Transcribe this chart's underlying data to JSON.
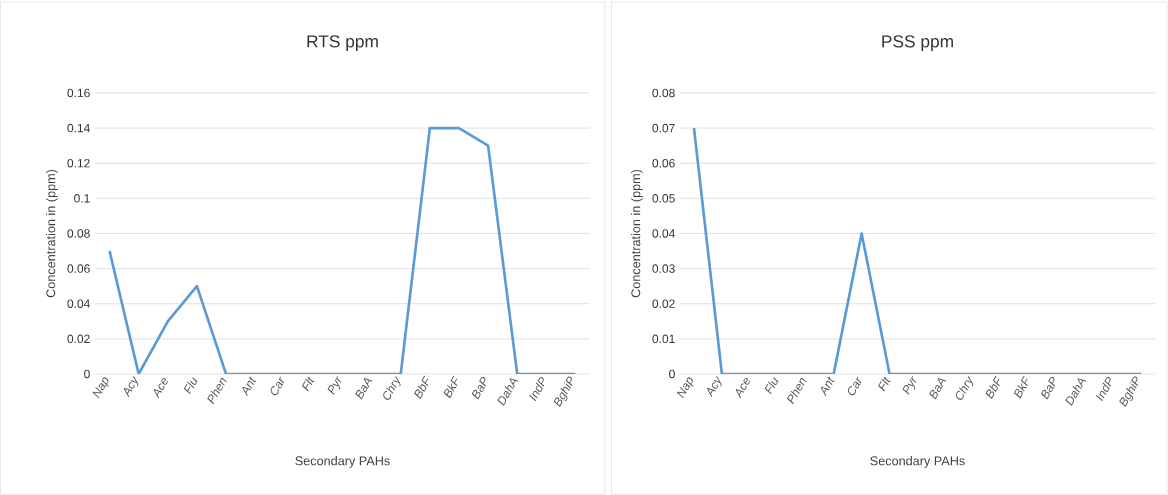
{
  "chart_data": [
    {
      "type": "line",
      "title": "RTS ppm",
      "xlabel": "Secondary PAHs",
      "ylabel": "Concentration in (ppm)",
      "categories": [
        "Nap",
        "Acy",
        "Ace",
        "Flu",
        "Phen",
        "Ant",
        "Car",
        "Flt",
        "Pyr",
        "BaA",
        "Chry",
        "BbF",
        "BkF",
        "BaP",
        "DahA",
        "IndP",
        "BghiP"
      ],
      "series": [
        {
          "color": "#5b9bd5",
          "values": [
            0.07,
            0,
            0.03,
            0.05,
            0,
            0,
            0,
            0,
            0,
            0,
            0,
            0.14,
            0.14,
            0.13,
            0,
            0,
            0
          ]
        }
      ],
      "ylim": [
        0,
        0.16
      ],
      "yticks": [
        0,
        0.02,
        0.04,
        0.06,
        0.08,
        0.1,
        0.12,
        0.14,
        0.16
      ],
      "grid": "y"
    },
    {
      "type": "line",
      "title": "PSS ppm",
      "xlabel": "Secondary PAHs",
      "ylabel": "Concentration in (ppm)",
      "categories": [
        "Nap",
        "Acy",
        "Ace",
        "Flu",
        "Phen",
        "Ant",
        "Car",
        "Flt",
        "Pyr",
        "BaA",
        "Chry",
        "BbF",
        "BkF",
        "BaP",
        "DahA",
        "IndP",
        "BghiP"
      ],
      "series": [
        {
          "color": "#5b9bd5",
          "values": [
            0.07,
            0,
            0,
            0,
            0,
            0,
            0.04,
            0,
            0,
            0,
            0,
            0,
            0,
            0,
            0,
            0,
            0
          ]
        }
      ],
      "ylim": [
        0,
        0.08
      ],
      "yticks": [
        0,
        0.01,
        0.02,
        0.03,
        0.04,
        0.05,
        0.06,
        0.07,
        0.08
      ],
      "grid": "y"
    }
  ]
}
